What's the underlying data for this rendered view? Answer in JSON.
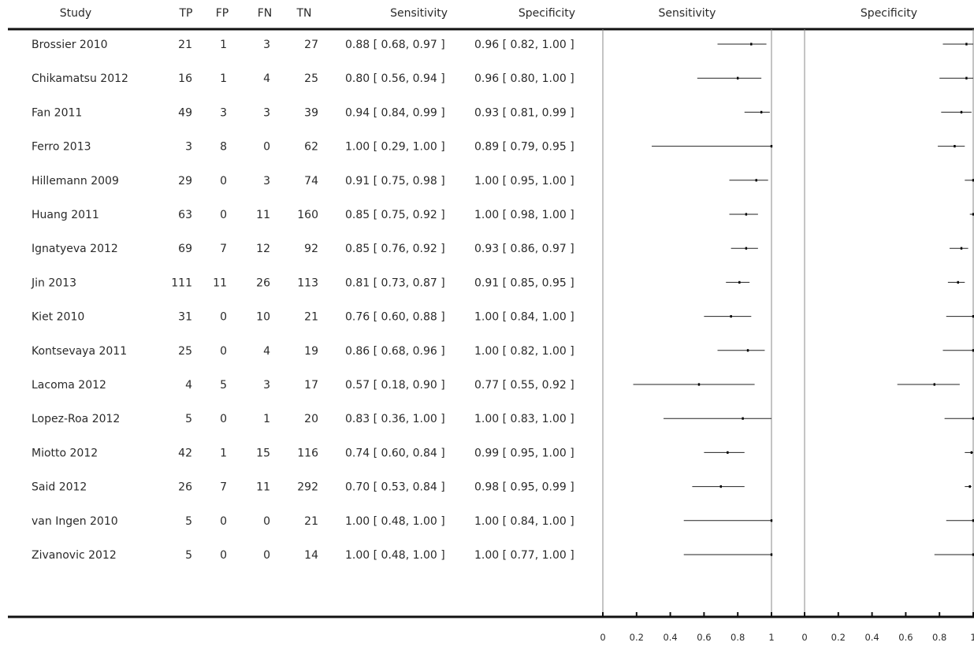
{
  "headers": {
    "study": "Study",
    "tp": "TP",
    "fp": "FP",
    "fn": "FN",
    "tn": "TN",
    "sensitivity": "Sensitivity",
    "specificity": "Specificity",
    "plot_sensitivity": "Sensitivity",
    "plot_specificity": "Specificity"
  },
  "chart_data": {
    "type": "forest",
    "series": [
      "Sensitivity",
      "Specificity"
    ],
    "xlim": [
      0,
      1
    ],
    "ticks": [
      0,
      0.2,
      0.4,
      0.6,
      0.8,
      1
    ],
    "tick_labels": [
      "0",
      "0.2",
      "0.4",
      "0.6",
      "0.8",
      "1"
    ],
    "studies": [
      {
        "study": "Brossier 2010",
        "tp": "21",
        "fp": "1",
        "fn": "3",
        "tn": "27",
        "sens_text": "0.88 [ 0.68, 0.97 ]",
        "spec_text": "0.96 [ 0.82, 1.00 ]",
        "sens": [
          0.88,
          0.68,
          0.97
        ],
        "spec": [
          0.96,
          0.82,
          1.0
        ]
      },
      {
        "study": "Chikamatsu 2012",
        "tp": "16",
        "fp": "1",
        "fn": "4",
        "tn": "25",
        "sens_text": "0.80 [ 0.56, 0.94 ]",
        "spec_text": "0.96 [ 0.80, 1.00 ]",
        "sens": [
          0.8,
          0.56,
          0.94
        ],
        "spec": [
          0.96,
          0.8,
          1.0
        ]
      },
      {
        "study": "Fan 2011",
        "tp": "49",
        "fp": "3",
        "fn": "3",
        "tn": "39",
        "sens_text": "0.94 [ 0.84, 0.99 ]",
        "spec_text": "0.93 [ 0.81, 0.99 ]",
        "sens": [
          0.94,
          0.84,
          0.99
        ],
        "spec": [
          0.93,
          0.81,
          0.99
        ]
      },
      {
        "study": "Ferro 2013",
        "tp": "3",
        "fp": "8",
        "fn": "0",
        "tn": "62",
        "sens_text": "1.00 [ 0.29, 1.00 ]",
        "spec_text": "0.89 [ 0.79, 0.95 ]",
        "sens": [
          1.0,
          0.29,
          1.0
        ],
        "spec": [
          0.89,
          0.79,
          0.95
        ]
      },
      {
        "study": "Hillemann 2009",
        "tp": "29",
        "fp": "0",
        "fn": "3",
        "tn": "74",
        "sens_text": "0.91 [ 0.75, 0.98 ]",
        "spec_text": "1.00 [ 0.95, 1.00 ]",
        "sens": [
          0.91,
          0.75,
          0.98
        ],
        "spec": [
          1.0,
          0.95,
          1.0
        ]
      },
      {
        "study": "Huang 2011",
        "tp": "63",
        "fp": "0",
        "fn": "11",
        "tn": "160",
        "sens_text": "0.85 [ 0.75, 0.92 ]",
        "spec_text": "1.00 [ 0.98, 1.00 ]",
        "sens": [
          0.85,
          0.75,
          0.92
        ],
        "spec": [
          1.0,
          0.98,
          1.0
        ]
      },
      {
        "study": "Ignatyeva 2012",
        "tp": "69",
        "fp": "7",
        "fn": "12",
        "tn": "92",
        "sens_text": "0.85 [ 0.76, 0.92 ]",
        "spec_text": "0.93 [ 0.86, 0.97 ]",
        "sens": [
          0.85,
          0.76,
          0.92
        ],
        "spec": [
          0.93,
          0.86,
          0.97
        ]
      },
      {
        "study": "Jin 2013",
        "tp": "111",
        "fp": "11",
        "fn": "26",
        "tn": "113",
        "sens_text": "0.81 [ 0.73, 0.87 ]",
        "spec_text": "0.91 [ 0.85, 0.95 ]",
        "sens": [
          0.81,
          0.73,
          0.87
        ],
        "spec": [
          0.91,
          0.85,
          0.95
        ]
      },
      {
        "study": "Kiet 2010",
        "tp": "31",
        "fp": "0",
        "fn": "10",
        "tn": "21",
        "sens_text": "0.76 [ 0.60, 0.88 ]",
        "spec_text": "1.00 [ 0.84, 1.00 ]",
        "sens": [
          0.76,
          0.6,
          0.88
        ],
        "spec": [
          1.0,
          0.84,
          1.0
        ]
      },
      {
        "study": "Kontsevaya 2011",
        "tp": "25",
        "fp": "0",
        "fn": "4",
        "tn": "19",
        "sens_text": "0.86 [ 0.68, 0.96 ]",
        "spec_text": "1.00 [ 0.82, 1.00 ]",
        "sens": [
          0.86,
          0.68,
          0.96
        ],
        "spec": [
          1.0,
          0.82,
          1.0
        ]
      },
      {
        "study": "Lacoma 2012",
        "tp": "4",
        "fp": "5",
        "fn": "3",
        "tn": "17",
        "sens_text": "0.57 [ 0.18, 0.90 ]",
        "spec_text": "0.77 [ 0.55, 0.92 ]",
        "sens": [
          0.57,
          0.18,
          0.9
        ],
        "spec": [
          0.77,
          0.55,
          0.92
        ]
      },
      {
        "study": "Lopez-Roa 2012",
        "tp": "5",
        "fp": "0",
        "fn": "1",
        "tn": "20",
        "sens_text": "0.83 [ 0.36, 1.00 ]",
        "spec_text": "1.00 [ 0.83, 1.00 ]",
        "sens": [
          0.83,
          0.36,
          1.0
        ],
        "spec": [
          1.0,
          0.83,
          1.0
        ]
      },
      {
        "study": "Miotto 2012",
        "tp": "42",
        "fp": "1",
        "fn": "15",
        "tn": "116",
        "sens_text": "0.74 [ 0.60, 0.84 ]",
        "spec_text": "0.99 [ 0.95, 1.00 ]",
        "sens": [
          0.74,
          0.6,
          0.84
        ],
        "spec": [
          0.99,
          0.95,
          1.0
        ]
      },
      {
        "study": "Said 2012",
        "tp": "26",
        "fp": "7",
        "fn": "11",
        "tn": "292",
        "sens_text": "0.70 [ 0.53, 0.84 ]",
        "spec_text": "0.98 [ 0.95, 0.99 ]",
        "sens": [
          0.7,
          0.53,
          0.84
        ],
        "spec": [
          0.98,
          0.95,
          0.99
        ]
      },
      {
        "study": "van Ingen 2010",
        "tp": "5",
        "fp": "0",
        "fn": "0",
        "tn": "21",
        "sens_text": "1.00 [ 0.48, 1.00 ]",
        "spec_text": "1.00 [ 0.84, 1.00 ]",
        "sens": [
          1.0,
          0.48,
          1.0
        ],
        "spec": [
          1.0,
          0.84,
          1.0
        ]
      },
      {
        "study": "Zivanovic 2012",
        "tp": "5",
        "fp": "0",
        "fn": "0",
        "tn": "14",
        "sens_text": "1.00 [ 0.48, 1.00 ]",
        "spec_text": "1.00 [ 0.77, 1.00 ]",
        "sens": [
          1.0,
          0.48,
          1.0
        ],
        "spec": [
          1.0,
          0.77,
          1.0
        ]
      }
    ]
  }
}
